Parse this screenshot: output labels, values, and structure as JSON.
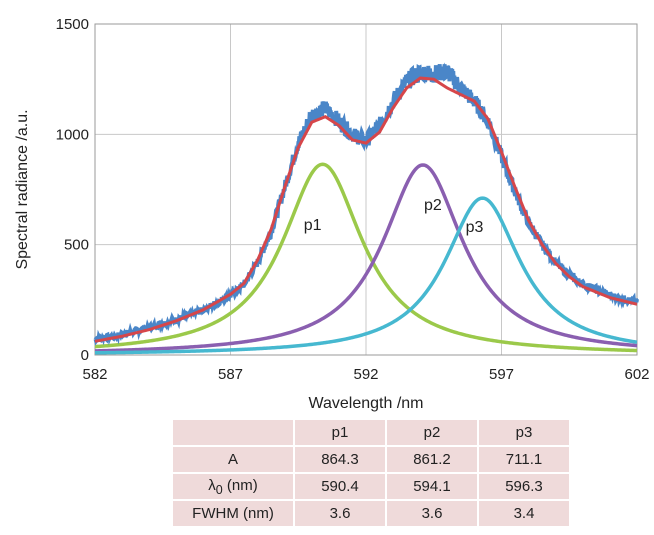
{
  "chart_data": {
    "type": "line",
    "title": "",
    "xlabel": "Wavelength /nm",
    "ylabel": "Spectral radiance /a.u.",
    "xlim": [
      582,
      602
    ],
    "ylim": [
      0,
      1500
    ],
    "xticks": [
      582,
      587,
      592,
      597,
      602
    ],
    "yticks": [
      0,
      500,
      1000,
      1500
    ],
    "grid": true,
    "legend": "none",
    "peaks": [
      {
        "label": "p1",
        "A": 864.3,
        "lambda0": 590.4,
        "fwhm": 3.6,
        "color": "#9bc94a"
      },
      {
        "label": "p2",
        "A": 861.2,
        "lambda0": 594.1,
        "fwhm": 3.6,
        "color": "#8a5fb0"
      },
      {
        "label": "p3",
        "A": 711.1,
        "lambda0": 596.3,
        "fwhm": 3.4,
        "color": "#46b8d0"
      }
    ],
    "series": [
      {
        "kind": "measured",
        "color": "#4a86c8",
        "x": [
          582,
          583,
          584,
          585,
          586,
          587,
          587.5,
          588,
          588.5,
          589,
          589.5,
          590,
          590.5,
          591,
          591.5,
          592,
          592.5,
          593,
          593.5,
          594,
          594.5,
          595,
          595.5,
          596,
          596.5,
          597,
          597.5,
          598,
          598.5,
          599,
          599.5,
          600,
          601,
          602
        ],
        "y": [
          70,
          95,
          125,
          160,
          205,
          270,
          320,
          420,
          560,
          760,
          960,
          1090,
          1120,
          1060,
          1000,
          970,
          1040,
          1150,
          1240,
          1280,
          1275,
          1285,
          1210,
          1150,
          1060,
          900,
          740,
          600,
          500,
          420,
          360,
          320,
          270,
          240
        ]
      },
      {
        "kind": "fit",
        "color": "#d6464a",
        "x": [
          582,
          583,
          584,
          585,
          586,
          587,
          587.5,
          588,
          588.5,
          589,
          589.5,
          590,
          590.5,
          591,
          591.5,
          592,
          592.5,
          593,
          593.5,
          594,
          594.5,
          595,
          595.5,
          596,
          596.5,
          597,
          597.5,
          598,
          598.5,
          599,
          599.5,
          600,
          601,
          602
        ],
        "y": [
          62,
          85,
          115,
          155,
          205,
          275,
          325,
          430,
          570,
          760,
          940,
          1055,
          1080,
          1040,
          975,
          960,
          1010,
          1120,
          1210,
          1255,
          1250,
          1210,
          1180,
          1150,
          1070,
          920,
          760,
          610,
          500,
          415,
          355,
          310,
          260,
          230
        ]
      }
    ]
  },
  "table": {
    "headers": [
      "",
      "p1",
      "p2",
      "p3"
    ],
    "rows": [
      {
        "label": "A",
        "values": [
          "864.3",
          "861.2",
          "711.1"
        ]
      },
      {
        "label": "λ0 (nm)",
        "label_main": "λ",
        "label_sub": "0",
        "label_tail": " (nm)",
        "values": [
          "590.4",
          "594.1",
          "596.3"
        ]
      },
      {
        "label": "FWHM (nm)",
        "values": [
          "3.6",
          "3.6",
          "3.4"
        ]
      }
    ]
  }
}
